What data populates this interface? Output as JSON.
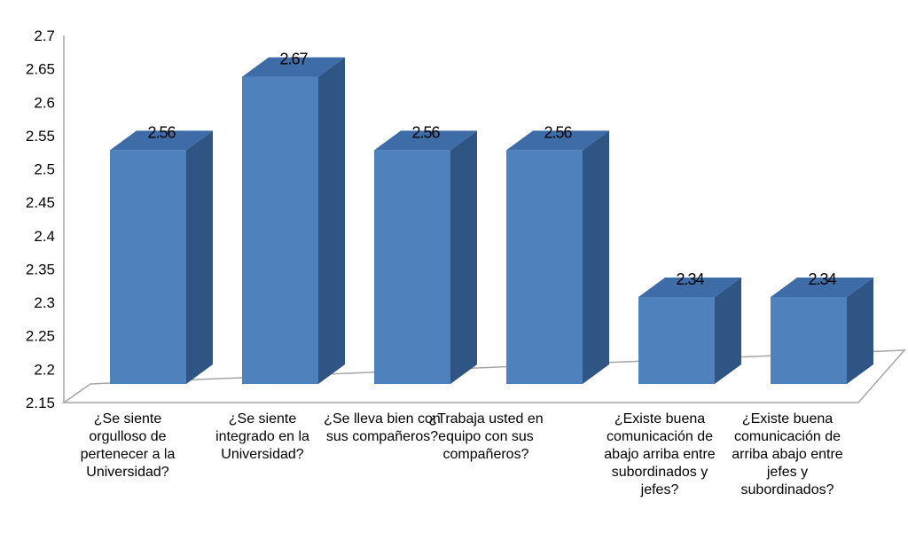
{
  "chart_data": {
    "type": "bar",
    "style": "3d-column",
    "title": "",
    "xlabel": "",
    "ylabel": "",
    "ylim": [
      2.15,
      2.7
    ],
    "yticks": [
      "2.15",
      "2.2",
      "2.25",
      "2.3",
      "2.35",
      "2.4",
      "2.45",
      "2.5",
      "2.55",
      "2.6",
      "2.65",
      "2.7"
    ],
    "categories": [
      "¿Se siente orgulloso de pertenecer a la Universidad?",
      "¿Se siente integrado en la Universidad?",
      "¿Se lleva bien con sus compañeros?",
      "¿Trabaja usted en equipo con sus compañeros?",
      "¿Existe buena comunicación de abajo arriba entre subordinados y jefes?",
      "¿Existe buena comunicación de arriba abajo entre jefes y subordinados?"
    ],
    "values": [
      2.56,
      2.67,
      2.56,
      2.56,
      2.34,
      2.34
    ],
    "value_labels": [
      "2.56",
      "2.67",
      "2.56",
      "2.56",
      "2.34",
      "2.34"
    ],
    "grid": false,
    "colors": {
      "front": "#4F81BD",
      "top": "#3D6CA6",
      "side": "#2F5585",
      "floor": "#A6A6A6"
    }
  }
}
